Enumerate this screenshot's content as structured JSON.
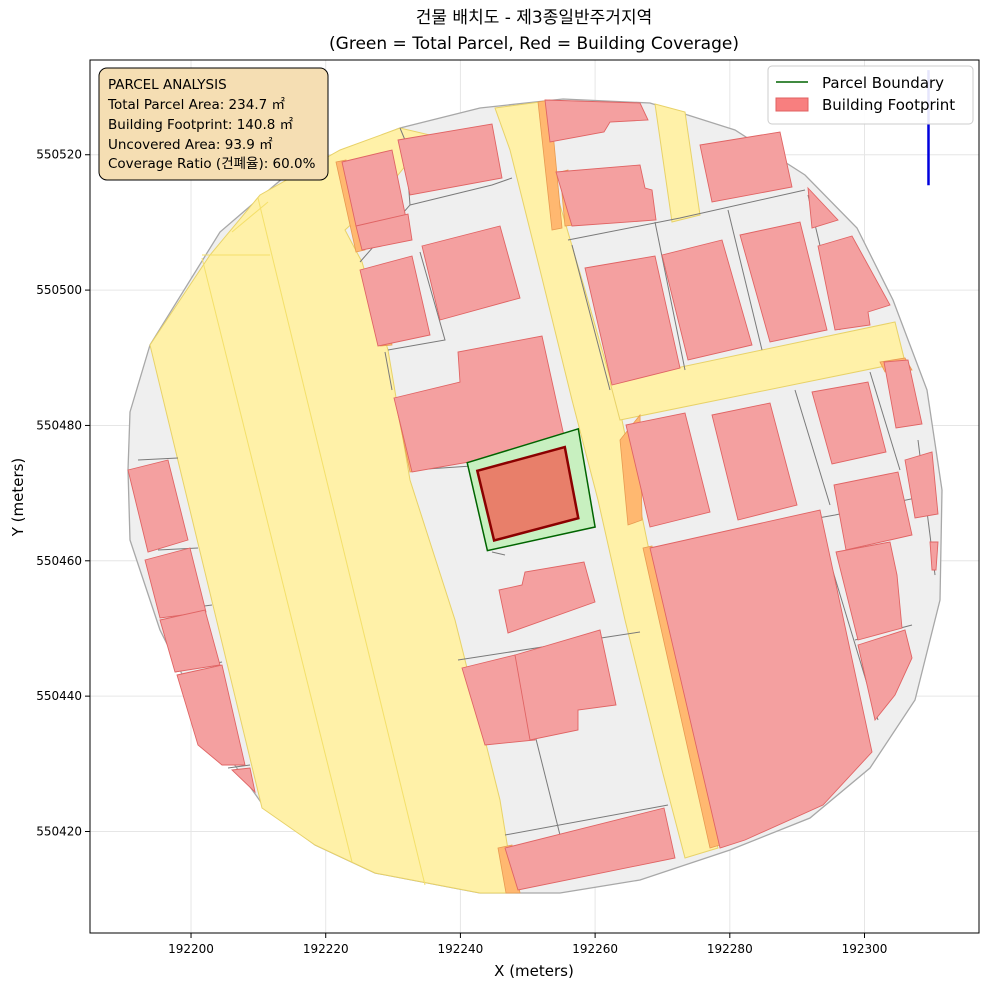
{
  "title_line1": "건물 배치도 - 제3종일반주거지역",
  "title_line2": "(Green = Total Parcel, Red = Building Coverage)",
  "xlabel": "X (meters)",
  "ylabel": "Y (meters)",
  "info_box": {
    "heading": "PARCEL ANALYSIS",
    "line_total": "Total Parcel Area: 234.7 ㎡",
    "line_footprint": "Building Footprint: 140.8 ㎡",
    "line_uncovered": "Uncovered Area: 93.9 ㎡",
    "line_ratio": "Coverage Ratio (건폐율): 60.0%"
  },
  "legend": {
    "parcel": "Parcel Boundary",
    "building": "Building Footprint"
  },
  "colors": {
    "parcel_edge": "#006400",
    "parcel_fill": "#90ee90",
    "building_fill": "#f08080",
    "building_edge": "#8b0000",
    "road": "#fff2a8",
    "lot": "#efefef",
    "north_arrow": "#0000dd",
    "info_box_bg": "#f5deb3"
  },
  "chart_data": {
    "type": "map",
    "xlim": [
      192185,
      192317
    ],
    "ylim": [
      550405,
      550534
    ],
    "xticks": [
      192200,
      192220,
      192240,
      192260,
      192280,
      192300
    ],
    "yticks": [
      550420,
      550440,
      550460,
      550480,
      550500,
      550520
    ],
    "grid": true,
    "legend_position": "upper right",
    "subject_parcel": [
      [
        192241,
        550474.5
      ],
      [
        192257.5,
        550479.5
      ],
      [
        192260,
        550465
      ],
      [
        192244,
        550461.5
      ]
    ],
    "subject_building": [
      [
        192242.5,
        550473.3
      ],
      [
        192255.5,
        550476.8
      ],
      [
        192257.5,
        550466.3
      ],
      [
        192245,
        550463
      ]
    ],
    "north_arrow": {
      "x": 192309.5,
      "y_from": 550515.5,
      "y_to": 550532.5
    }
  }
}
